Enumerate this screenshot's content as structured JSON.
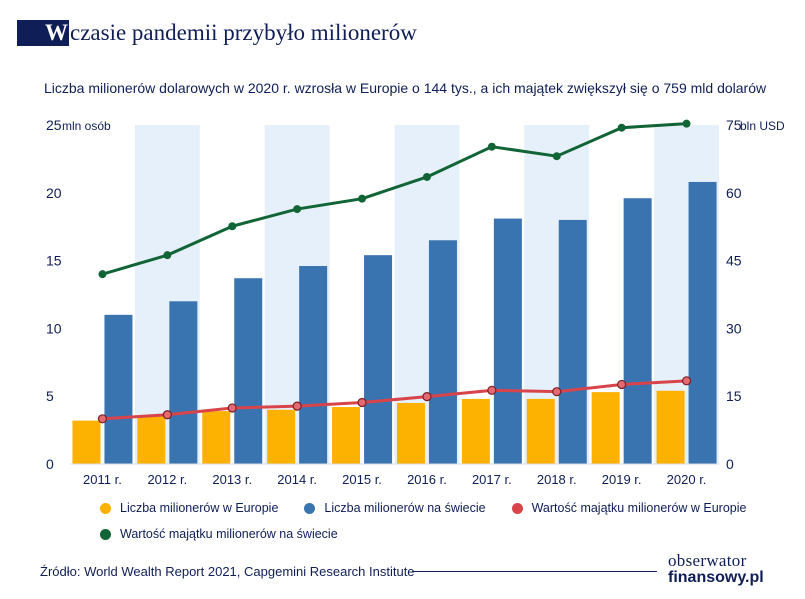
{
  "header": {
    "title_badge": "W",
    "title_rest": "czasie pandemii przybyło milionerów",
    "subtitle": "Liczba milionerów dolarowych w 2020 r. wzrosła w Europie o 144 tys., a ich majątek zwiększył się o 759 mld dolarów"
  },
  "chart_data": {
    "type": "bar",
    "categories": [
      "2011 r.",
      "2012 r.",
      "2013 r.",
      "2014 r.",
      "2015 r.",
      "2016 r.",
      "2017 r.",
      "2018 r.",
      "2019 r.",
      "2020 r."
    ],
    "left_axis": {
      "unit_label": "mln osób",
      "ylim": [
        0,
        25
      ],
      "ticks": [
        "0",
        "5",
        "10",
        "15",
        "20",
        "25"
      ],
      "tick_values": [
        0,
        5,
        10,
        15,
        20,
        25
      ]
    },
    "right_axis": {
      "unit_label": "bln USD",
      "ylim": [
        0,
        75
      ],
      "ticks": [
        "0",
        "15",
        "30",
        "45",
        "60",
        "75"
      ],
      "tick_values": [
        0,
        15,
        30,
        45,
        60,
        75
      ]
    },
    "series": [
      {
        "name": "Liczba milionerów w Europie",
        "kind": "bar",
        "axis": "left",
        "color": "#fdb101",
        "values": [
          3.2,
          3.5,
          3.9,
          4.0,
          4.2,
          4.5,
          4.8,
          4.8,
          5.3,
          5.4
        ]
      },
      {
        "name": "Liczba milionerów na świecie",
        "kind": "bar",
        "axis": "left",
        "color": "#3a74b0",
        "values": [
          11.0,
          12.0,
          13.7,
          14.6,
          15.4,
          16.5,
          18.1,
          18.0,
          19.6,
          20.8
        ]
      },
      {
        "name": "Wartość majątku milionerów w Europie",
        "kind": "line",
        "axis": "right",
        "color": "#d9434a",
        "values": [
          10.0,
          10.9,
          12.4,
          12.8,
          13.6,
          14.9,
          16.3,
          16.0,
          17.6,
          18.4
        ]
      },
      {
        "name": "Wartość majątku milionerów na świecie",
        "kind": "line",
        "axis": "right",
        "color": "#106435",
        "values": [
          42.0,
          46.2,
          52.6,
          56.4,
          58.7,
          63.5,
          70.2,
          68.1,
          74.4,
          75.3
        ]
      }
    ],
    "colors": {
      "band": "#e6f0fa",
      "axis_text": "#0f1e56",
      "grid": "#d6dbe3"
    }
  },
  "footer": {
    "source": "Źródło: World Wealth Report 2021, Capgemini Research Institute",
    "logo_top": "obserwator",
    "logo_bottom": "finansowy.pl"
  }
}
